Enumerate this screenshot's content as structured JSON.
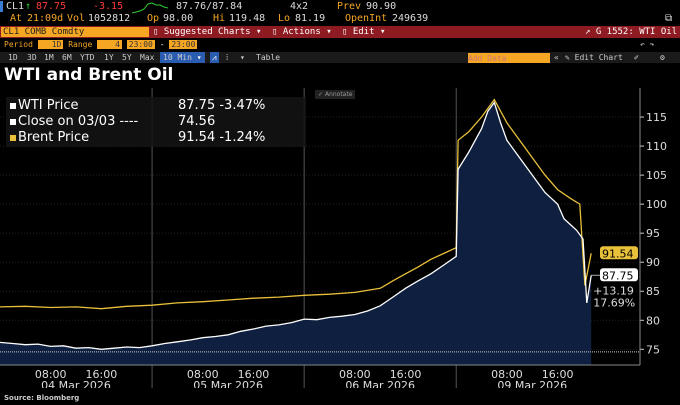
{
  "header": {
    "ticker": "CL1",
    "last": "87.75",
    "change": "-3.15",
    "bid_ask": "87.76/87.84",
    "size": "4x2",
    "prev_label": "Prev",
    "prev": "90.90",
    "at_label": "At",
    "time": "21:09d",
    "vol_label": "Vol",
    "vol": "1052812",
    "op_label": "Op",
    "op": "98.00",
    "hi_label": "Hi",
    "hi": "119.48",
    "lo_label": "Lo",
    "lo": "81.19",
    "oi_label": "OpenInt",
    "oi": "249639"
  },
  "menubar": {
    "security": "CL1 COMB Comdty",
    "suggested": "Suggested Charts",
    "actions": "Actions",
    "edit": "Edit",
    "chart_id": "G 1552: WTI Oil"
  },
  "settings": {
    "period_label": "Period",
    "period": "1D",
    "range_label": "Range",
    "range": "4",
    "from": "23:00",
    "to": "23:00"
  },
  "toolbar": {
    "ranges": [
      "1D",
      "3D",
      "1M",
      "6M",
      "YTD",
      "1Y",
      "5Y",
      "Max"
    ],
    "interval": "10 Min",
    "table": "Table",
    "add_data": "Add Data",
    "edit_chart": "Edit Chart",
    "annotate": "Annotate"
  },
  "source": "Source: Bloomberg",
  "colors": {
    "wti": "#ffffff",
    "brent": "#e8c03a",
    "area": "#0e1f3f"
  },
  "chart_data": {
    "type": "line",
    "title": "WTI and Brent Oil",
    "legend": [
      {
        "label": "WTI Price",
        "value": "87.75",
        "change": "-3.47%"
      },
      {
        "label": "Close on 03/03 ----",
        "value": "74.56",
        "change": ""
      },
      {
        "label": "Brent Price",
        "value": "91.54",
        "change": "-1.24%"
      }
    ],
    "x_unit": "trading hours since 04 Mar 00:00",
    "xlim": [
      0,
      101
    ],
    "ylim": [
      72.3,
      120
    ],
    "yticks": [
      75,
      80,
      85,
      90,
      95,
      100,
      105,
      110,
      115
    ],
    "xticks": [
      {
        "t": 8,
        "label": "08:00"
      },
      {
        "t": 16,
        "label": "16:00"
      },
      {
        "t": 32,
        "label": "08:00"
      },
      {
        "t": 40,
        "label": "16:00"
      },
      {
        "t": 56,
        "label": "08:00"
      },
      {
        "t": 64,
        "label": "16:00"
      },
      {
        "t": 80,
        "label": "08:00"
      },
      {
        "t": 88,
        "label": "16:00"
      }
    ],
    "days": [
      {
        "t": 12,
        "label": "04 Mar 2026"
      },
      {
        "t": 36,
        "label": "05 Mar 2026"
      },
      {
        "t": 60,
        "label": "06 Mar 2026"
      },
      {
        "t": 84,
        "label": "09 Mar 2026"
      }
    ],
    "reference_close": 74.56,
    "series": [
      {
        "name": "WTI Price",
        "points": [
          [
            0,
            76.2
          ],
          [
            2,
            76.0
          ],
          [
            4,
            75.8
          ],
          [
            6,
            75.9
          ],
          [
            8,
            75.5
          ],
          [
            10,
            75.6
          ],
          [
            12,
            75.2
          ],
          [
            14,
            75.3
          ],
          [
            16,
            75.0
          ],
          [
            18,
            75.2
          ],
          [
            20,
            75.4
          ],
          [
            22,
            75.3
          ],
          [
            24,
            75.6
          ],
          [
            26,
            76.0
          ],
          [
            28,
            76.3
          ],
          [
            30,
            76.6
          ],
          [
            32,
            77.0
          ],
          [
            34,
            77.2
          ],
          [
            36,
            77.5
          ],
          [
            38,
            78.1
          ],
          [
            40,
            78.5
          ],
          [
            42,
            79.0
          ],
          [
            44,
            79.2
          ],
          [
            46,
            79.6
          ],
          [
            48,
            80.2
          ],
          [
            50,
            80.1
          ],
          [
            52,
            80.5
          ],
          [
            54,
            80.7
          ],
          [
            56,
            81.0
          ],
          [
            58,
            81.6
          ],
          [
            60,
            82.5
          ],
          [
            62,
            84.0
          ],
          [
            64,
            85.5
          ],
          [
            66,
            86.8
          ],
          [
            68,
            88.0
          ],
          [
            70,
            89.5
          ],
          [
            72,
            91.0
          ],
          [
            72.3,
            106
          ],
          [
            74,
            109
          ],
          [
            76,
            113
          ],
          [
            77,
            116
          ],
          [
            78,
            117.5
          ],
          [
            79,
            114
          ],
          [
            80,
            111
          ],
          [
            82,
            108
          ],
          [
            84,
            105
          ],
          [
            86,
            102
          ],
          [
            87,
            101
          ],
          [
            88,
            100
          ],
          [
            89,
            97.5
          ],
          [
            90,
            96.5
          ],
          [
            91,
            95.5
          ],
          [
            92,
            94
          ],
          [
            92.6,
            83
          ],
          [
            93.3,
            87.75
          ]
        ]
      },
      {
        "name": "Brent Price",
        "points": [
          [
            0,
            82.3
          ],
          [
            4,
            82.4
          ],
          [
            8,
            82.2
          ],
          [
            12,
            82.3
          ],
          [
            16,
            82.0
          ],
          [
            20,
            82.4
          ],
          [
            24,
            82.6
          ],
          [
            28,
            83.0
          ],
          [
            32,
            83.2
          ],
          [
            36,
            83.5
          ],
          [
            40,
            83.8
          ],
          [
            44,
            84.0
          ],
          [
            48,
            84.3
          ],
          [
            52,
            84.5
          ],
          [
            56,
            84.8
          ],
          [
            60,
            85.5
          ],
          [
            62,
            86.8
          ],
          [
            64,
            88
          ],
          [
            66,
            89.2
          ],
          [
            68,
            90.5
          ],
          [
            70,
            91.5
          ],
          [
            72,
            92.5
          ],
          [
            72.3,
            111
          ],
          [
            74,
            112.5
          ],
          [
            76,
            115
          ],
          [
            78,
            118
          ],
          [
            79,
            116
          ],
          [
            80,
            114
          ],
          [
            82,
            111
          ],
          [
            84,
            108
          ],
          [
            86,
            105
          ],
          [
            88,
            102.5
          ],
          [
            90,
            101
          ],
          [
            91.5,
            100
          ],
          [
            92.3,
            86
          ],
          [
            93.3,
            91.54
          ]
        ]
      }
    ],
    "annotations": {
      "wti_last": "87.75",
      "brent_last": "91.54",
      "change_abs": "+13.19",
      "change_pct": "17.69%"
    }
  }
}
